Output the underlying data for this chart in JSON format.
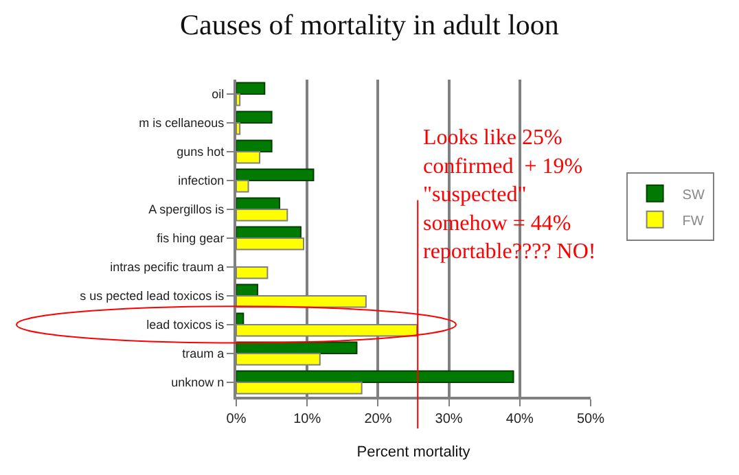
{
  "chart_data": {
    "type": "bar",
    "orientation": "horizontal",
    "title": "Causes of mortality in adult loon",
    "xlabel": "Percent mortality",
    "categories": [
      "oil",
      "m is cellaneous",
      "guns hot",
      "infection",
      "A spergillos is",
      "fis hing gear",
      "intras pecific traum a",
      "s us pected lead toxicos is",
      "lead toxicos is",
      "traum a",
      "unknow n"
    ],
    "series": [
      {
        "name": "SW",
        "color": "#007a00",
        "values": [
          4.0,
          5.0,
          5.0,
          10.9,
          6.1,
          9.1,
          null,
          3.0,
          1.0,
          17.0,
          39.1
        ]
      },
      {
        "name": "FW",
        "color": "#ffff00",
        "values": [
          0.5,
          0.5,
          3.3,
          1.7,
          7.2,
          9.5,
          4.4,
          18.3,
          25.5,
          11.8,
          17.7
        ]
      }
    ],
    "xlim": [
      0,
      50
    ],
    "xticks": [
      {
        "value": 0,
        "label": "0%"
      },
      {
        "value": 10,
        "label": "10%"
      },
      {
        "value": 20,
        "label": "20%"
      },
      {
        "value": 30,
        "label": "30%"
      },
      {
        "value": 40,
        "label": "40%"
      },
      {
        "value": 50,
        "label": "50%"
      }
    ],
    "grid": "x",
    "legend": "right",
    "annotations": [
      "Looks like 25%\nconfirmed  + 19%\n\"suspected\"\nsomehow = 44%\nreportable???? NO!"
    ],
    "ref_lines": [
      {
        "axis": "x",
        "value": 25.6,
        "color": "#ff0000"
      }
    ]
  }
}
